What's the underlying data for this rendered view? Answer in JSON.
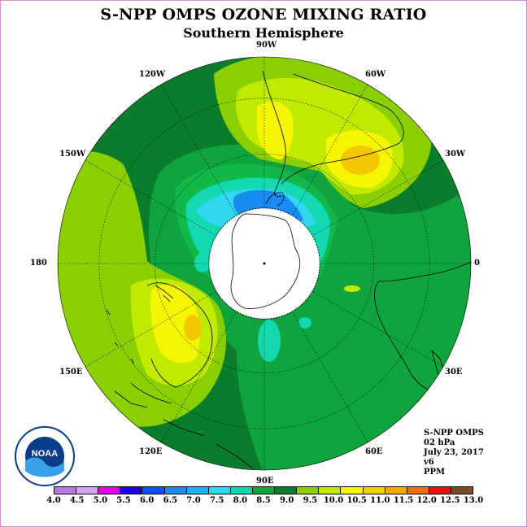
{
  "title": "S-NPP OMPS OZONE MIXING RATIO",
  "subtitle": "Southern Hemisphere",
  "longitude_labels": [
    {
      "text": "90W",
      "deg": 90
    },
    {
      "text": "60W",
      "deg": 60
    },
    {
      "text": "30W",
      "deg": 30
    },
    {
      "text": "0",
      "deg": 0
    },
    {
      "text": "30E",
      "deg": -30
    },
    {
      "text": "60E",
      "deg": -60
    },
    {
      "text": "90E",
      "deg": -90
    },
    {
      "text": "120E",
      "deg": -120
    },
    {
      "text": "150E",
      "deg": -150
    },
    {
      "text": "180",
      "deg": 180
    },
    {
      "text": "150W",
      "deg": 150
    },
    {
      "text": "120W",
      "deg": 120
    }
  ],
  "info": {
    "satellite": "S-NPP OMPS",
    "level": "02 hPa",
    "date": "July 23, 2017",
    "version": "v6",
    "units": "PPM"
  },
  "legend": {
    "ticks": [
      "4.0",
      "4.5",
      "5.0",
      "5.5",
      "6.0",
      "6.5",
      "7.0",
      "7.5",
      "8.0",
      "8.5",
      "9.0",
      "9.5",
      "10.0",
      "10.5",
      "11.0",
      "11.5",
      "12.0",
      "12.5",
      "13.0"
    ],
    "colors": [
      "#b57be0",
      "#d4a3ee",
      "#e400e4",
      "#1f00d8",
      "#0b52f0",
      "#1a8bf0",
      "#1fb1f0",
      "#2fd8ee",
      "#12d9b0",
      "#0fa43d",
      "#0a7d2c",
      "#8ad000",
      "#c0ea00",
      "#f6f600",
      "#f4d000",
      "#f4a800",
      "#f06c10",
      "#ee1010",
      "#7b4a2a"
    ]
  },
  "logo": {
    "text": "NOAA"
  }
}
